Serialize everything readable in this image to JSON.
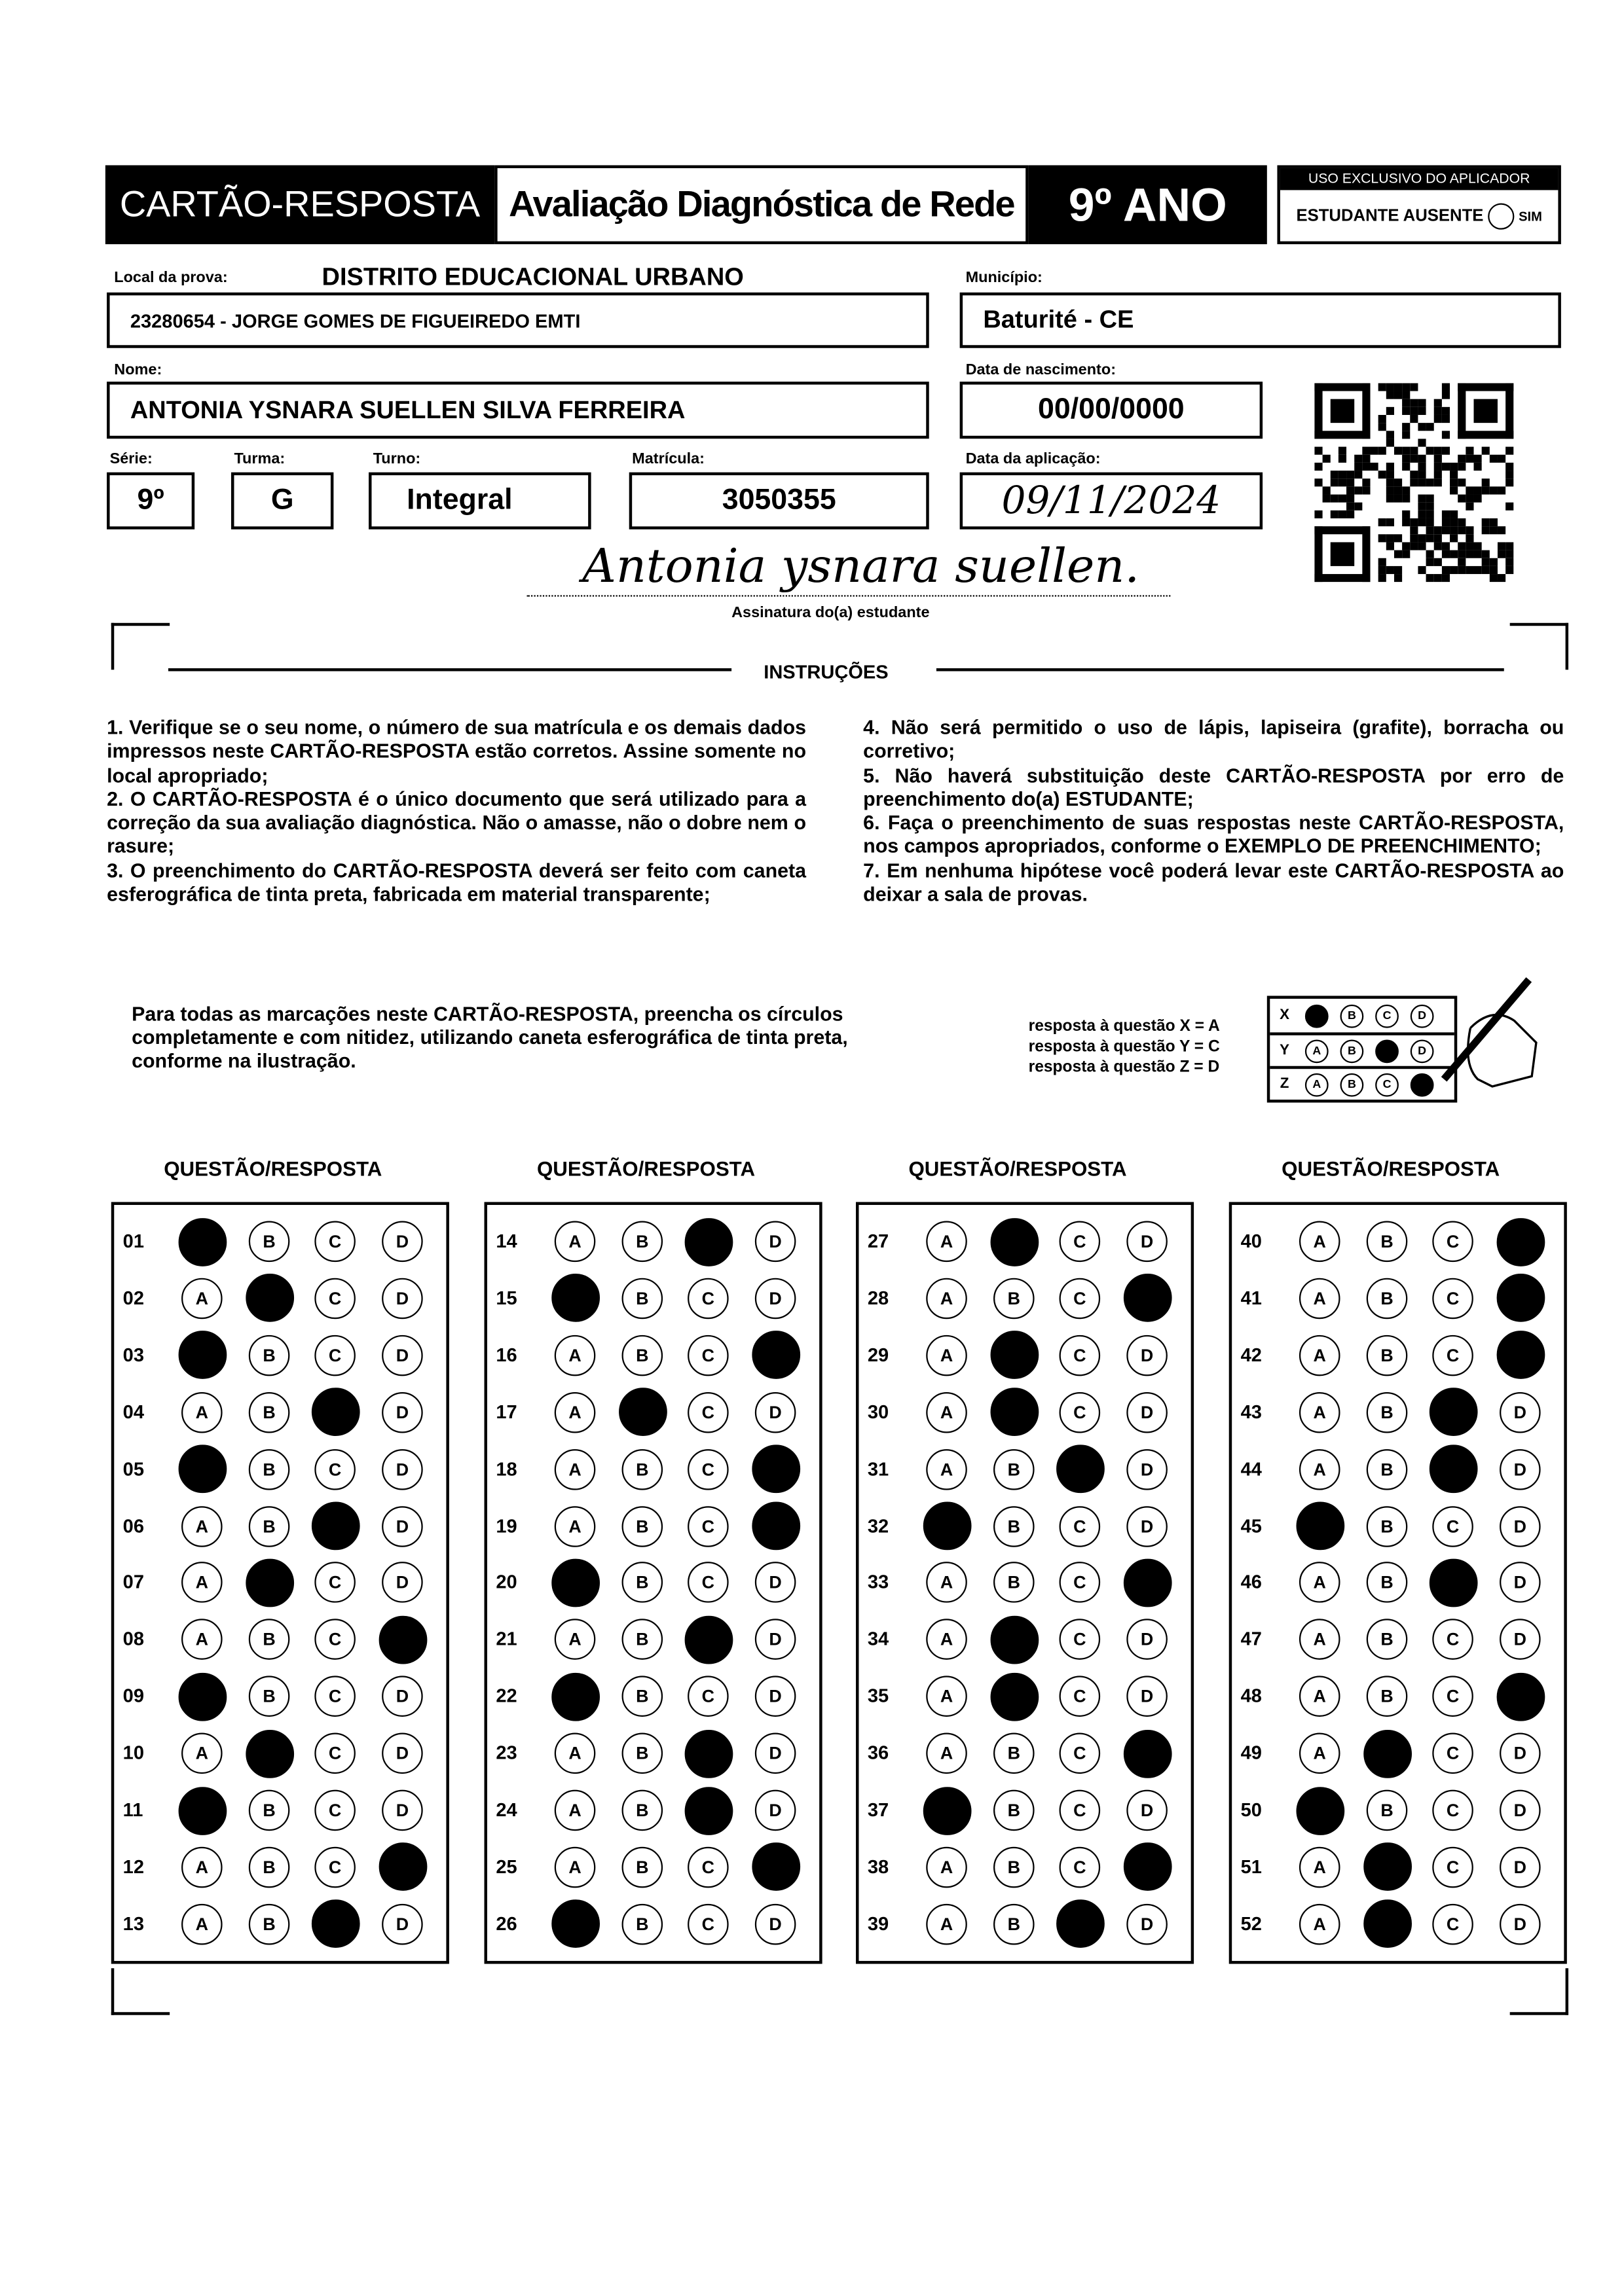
{
  "header": {
    "title": "CARTÃO-RESPOSTA",
    "exam": "Avaliação Diagnóstica de Rede",
    "grade": "9º ANO",
    "applicator": {
      "title": "USO EXCLUSIVO DO APLICADOR",
      "absent_label": "ESTUDANTE AUSENTE",
      "absent_option": "SIM",
      "absent_checked": false
    }
  },
  "fields": {
    "local_label": "Local da prova:",
    "local_district": "DISTRITO EDUCACIONAL URBANO",
    "local_school": "23280654 - JORGE GOMES DE FIGUEIREDO EMTI",
    "municipio_label": "Município:",
    "municipio": "Baturité - CE",
    "nome_label": "Nome:",
    "nome": "ANTONIA YSNARA SUELLEN SILVA FERREIRA",
    "nascimento_label": "Data de nascimento:",
    "nascimento": "00/00/0000",
    "serie_label": "Série:",
    "serie": "9º",
    "turma_label": "Turma:",
    "turma": "G",
    "turno_label": "Turno:",
    "turno": "Integral",
    "matricula_label": "Matrícula:",
    "matricula": "3050355",
    "aplicacao_label": "Data da aplicação:",
    "aplicacao": "09/11/2024",
    "signature": "Antonia ysnara suellen.",
    "signature_label": "Assinatura do(a) estudante"
  },
  "instructions": {
    "title": "INSTRUÇÕES",
    "left": "1. Verifique se o seu nome, o número de sua matrícula e os demais dados impressos neste CARTÃO-RESPOSTA estão corretos. Assine somente no local apropriado;\n2. O CARTÃO-RESPOSTA é o único documento que será utilizado para a correção da sua avaliação diagnóstica. Não o amasse, não o dobre nem o rasure;\n3. O preenchimento do CARTÃO-RESPOSTA deverá ser feito com caneta esferográfica de tinta preta, fabricada em material transparente;",
    "right": "4. Não será permitido o uso de lápis, lapiseira (grafite), borracha ou corretivo;\n5. Não haverá substituição deste CARTÃO-RESPOSTA por erro de preenchimento do(a) ESTUDANTE;\n6. Faça o preenchimento de suas respostas neste CARTÃO-RESPOSTA, nos campos apropriados, conforme o EXEMPLO DE PREENCHIMENTO;\n7. Em nenhuma hipótese você poderá levar este CARTÃO-RESPOSTA ao deixar a sala de provas.",
    "fill_note": "Para todas as marcações neste CARTÃO-RESPOSTA, preencha os círculos completamente e com nitidez, utilizando caneta esferográfica de tinta preta, conforme na ilustração.",
    "example": [
      {
        "q": "X",
        "answer": "A",
        "text": "resposta à questão X = A"
      },
      {
        "q": "Y",
        "answer": "C",
        "text": "resposta à questão Y = C"
      },
      {
        "q": "Z",
        "answer": "D",
        "text": "resposta à questão Z = D"
      }
    ]
  },
  "options": [
    "A",
    "B",
    "C",
    "D"
  ],
  "column_title": "QUESTÃO/RESPOSTA",
  "answers": [
    [
      "01",
      "A"
    ],
    [
      "02",
      "B"
    ],
    [
      "03",
      "A"
    ],
    [
      "04",
      "C"
    ],
    [
      "05",
      "A"
    ],
    [
      "06",
      "C"
    ],
    [
      "07",
      "B"
    ],
    [
      "08",
      "D"
    ],
    [
      "09",
      "A"
    ],
    [
      "10",
      "B"
    ],
    [
      "11",
      "A"
    ],
    [
      "12",
      "D"
    ],
    [
      "13",
      "C"
    ],
    [
      "14",
      "C"
    ],
    [
      "15",
      "A"
    ],
    [
      "16",
      "D"
    ],
    [
      "17",
      "B"
    ],
    [
      "18",
      "D"
    ],
    [
      "19",
      "D"
    ],
    [
      "20",
      "A"
    ],
    [
      "21",
      "C"
    ],
    [
      "22",
      "A"
    ],
    [
      "23",
      "C"
    ],
    [
      "24",
      "C"
    ],
    [
      "25",
      "D"
    ],
    [
      "26",
      "A"
    ],
    [
      "27",
      "B"
    ],
    [
      "28",
      "D"
    ],
    [
      "29",
      "B"
    ],
    [
      "30",
      "B"
    ],
    [
      "31",
      "C"
    ],
    [
      "32",
      "A"
    ],
    [
      "33",
      "D"
    ],
    [
      "34",
      "B"
    ],
    [
      "35",
      "B"
    ],
    [
      "36",
      "D"
    ],
    [
      "37",
      "A"
    ],
    [
      "38",
      "D"
    ],
    [
      "39",
      "C"
    ],
    [
      "40",
      "D"
    ],
    [
      "41",
      "D"
    ],
    [
      "42",
      "D"
    ],
    [
      "43",
      "C"
    ],
    [
      "44",
      "C"
    ],
    [
      "45",
      "A"
    ],
    [
      "46",
      "C"
    ],
    [
      "47",
      ""
    ],
    [
      "48",
      "D"
    ],
    [
      "49",
      "B"
    ],
    [
      "50",
      "A"
    ],
    [
      "51",
      "B"
    ],
    [
      "52",
      "B"
    ]
  ]
}
